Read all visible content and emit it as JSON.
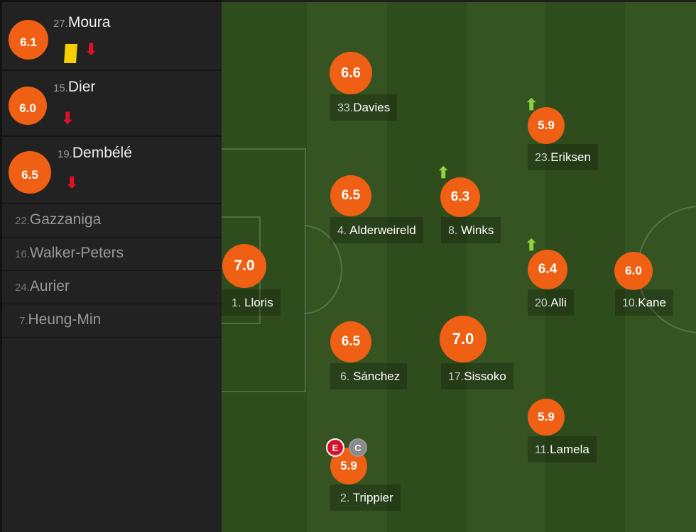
{
  "bench_used": [
    {
      "num": "27.",
      "name": "Moura",
      "rating": "6.1",
      "yellow_card": true,
      "subbed_off": true
    },
    {
      "num": "15.",
      "name": "Dier",
      "rating": "6.0",
      "subbed_off": true
    },
    {
      "num": "19.",
      "name": "Dembélé",
      "rating": "6.5",
      "subbed_off": true
    }
  ],
  "bench_unused": [
    {
      "num": "22.",
      "name": "Gazzaniga"
    },
    {
      "num": "16.",
      "name": "Walker-Peters"
    },
    {
      "num": "24.",
      "name": "Aurier"
    },
    {
      "num": "7.",
      "name": "Heung-Min"
    }
  ],
  "lineup": [
    {
      "num": "33.",
      "name": "Davies",
      "rating": "6.6"
    },
    {
      "num": "23.",
      "name": "Eriksen",
      "rating": "5.9",
      "subbed_on": true
    },
    {
      "num": "4.",
      "name": "Alderweireld",
      "rating": "6.5"
    },
    {
      "num": "8.",
      "name": "Winks",
      "rating": "6.3",
      "subbed_on": true
    },
    {
      "num": "1.",
      "name": "Lloris",
      "rating": "7.0"
    },
    {
      "num": "20.",
      "name": "Alli",
      "rating": "6.4",
      "subbed_on": true
    },
    {
      "num": "10.",
      "name": "Kane",
      "rating": "6.0"
    },
    {
      "num": "6.",
      "name": "Sánchez",
      "rating": "6.5"
    },
    {
      "num": "17.",
      "name": "Sissoko",
      "rating": "7.0"
    },
    {
      "num": "11.",
      "name": "Lamela",
      "rating": "5.9"
    },
    {
      "num": "2.",
      "name": "Trippier",
      "rating": "5.9",
      "badges": [
        "E",
        "C"
      ]
    }
  ],
  "colors": {
    "rating": "#ef5f14",
    "sub_off": "#e0102a",
    "sub_on": "#8cd33c",
    "yellow": "#f5cf00"
  }
}
